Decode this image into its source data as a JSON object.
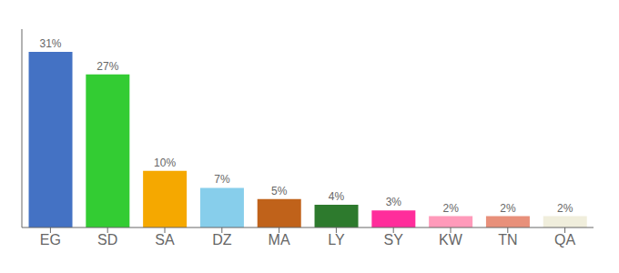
{
  "chart_data": {
    "type": "bar",
    "categories": [
      "EG",
      "SD",
      "SA",
      "DZ",
      "MA",
      "LY",
      "SY",
      "KW",
      "TN",
      "QA"
    ],
    "values": [
      31,
      27,
      10,
      7,
      5,
      4,
      3,
      2,
      2,
      2
    ],
    "colors": [
      "#4472c4",
      "#33cc33",
      "#f5a800",
      "#87ceeb",
      "#c0621a",
      "#2d7a2d",
      "#ff2d9b",
      "#ff9aba",
      "#e8907a",
      "#f0eedc"
    ],
    "value_labels": [
      "31%",
      "27%",
      "10%",
      "7%",
      "5%",
      "4%",
      "3%",
      "2%",
      "2%",
      "2%"
    ],
    "data_labels": true,
    "ylim": [
      0,
      35
    ],
    "tick_labels": "x",
    "grid": false
  }
}
